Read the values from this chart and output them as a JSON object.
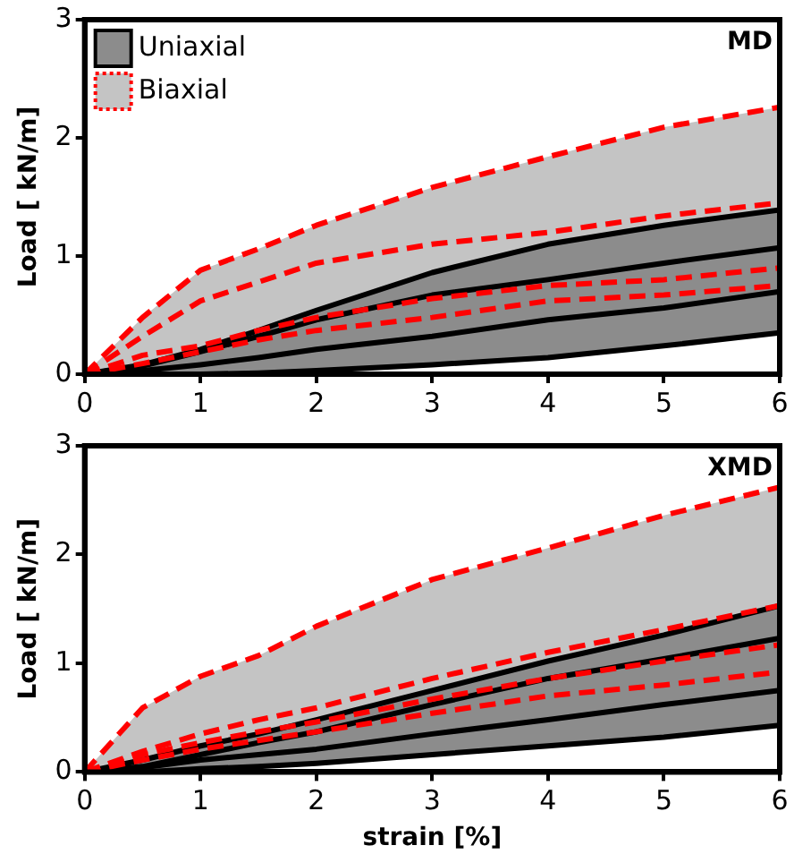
{
  "chart_data": [
    {
      "type": "line",
      "annotations": [
        "MD"
      ],
      "ylabel": "Load [ kN/m]",
      "x": [
        0,
        0.5,
        1,
        1.5,
        2,
        3,
        4,
        5,
        6
      ],
      "xlim": [
        0,
        6
      ],
      "ylim": [
        0,
        3
      ],
      "xticks": [
        0,
        1,
        2,
        3,
        4,
        5,
        6
      ],
      "yticks": [
        0,
        1,
        2,
        3
      ],
      "grid": false,
      "legend": "top left",
      "marker": "none",
      "series": [
        {
          "name": "Uniaxial",
          "color": "#000000",
          "values": [
            0,
            0.07,
            0.19,
            0.32,
            0.46,
            0.67,
            0.8,
            0.94,
            1.07
          ],
          "lower": [
            0,
            0,
            0,
            0.01,
            0.03,
            0.08,
            0.14,
            0.24,
            0.35
          ],
          "upper": [
            0,
            0.08,
            0.21,
            0.37,
            0.54,
            0.86,
            1.1,
            1.26,
            1.39
          ]
        },
        {
          "color": "#000000",
          "values": [
            0,
            0.03,
            0.08,
            0.14,
            0.21,
            0.32,
            0.46,
            0.56,
            0.7
          ]
        },
        {
          "color": "#000000",
          "values": [
            0,
            0,
            0,
            0.01,
            0.03,
            0.08,
            0.14,
            0.24,
            0.35
          ]
        },
        {
          "color": "#000000",
          "values": [
            0,
            0.08,
            0.21,
            0.37,
            0.54,
            0.86,
            1.1,
            1.26,
            1.39
          ]
        },
        {
          "name": "Biaxial",
          "color": "#ff0000",
          "line_style": "dashed",
          "values": [
            0,
            0.32,
            0.62,
            0.78,
            0.94,
            1.1,
            1.2,
            1.34,
            1.45
          ],
          "lower": [
            0,
            0.09,
            0.19,
            0.29,
            0.37,
            0.48,
            0.62,
            0.67,
            0.75
          ],
          "upper": [
            0,
            0.48,
            0.88,
            1.06,
            1.26,
            1.58,
            1.84,
            2.09,
            2.26
          ]
        },
        {
          "color": "#ff0000",
          "line_style": "dashed",
          "values": [
            0,
            0.16,
            0.24,
            0.37,
            0.48,
            0.64,
            0.75,
            0.8,
            0.9
          ]
        },
        {
          "color": "#ff0000",
          "line_style": "dashed",
          "values": [
            0,
            0.09,
            0.19,
            0.29,
            0.37,
            0.48,
            0.62,
            0.67,
            0.75
          ]
        },
        {
          "color": "#ff0000",
          "line_style": "dashed",
          "values": [
            0,
            0.48,
            0.88,
            1.06,
            1.26,
            1.58,
            1.84,
            2.09,
            2.26
          ]
        }
      ]
    },
    {
      "type": "line",
      "annotations": [
        "XMD"
      ],
      "ylabel": "Load [ kN/m]",
      "xlabel": "strain [%]",
      "x": [
        0,
        0.5,
        1,
        1.5,
        2,
        3,
        4,
        5,
        6
      ],
      "xlim": [
        0,
        6
      ],
      "ylim": [
        0,
        3
      ],
      "xticks": [
        0,
        1,
        2,
        3,
        4,
        5,
        6
      ],
      "yticks": [
        0,
        1,
        2,
        3
      ],
      "grid": false,
      "marker": "none",
      "series": [
        {
          "color": "#000000",
          "values": [
            0,
            0.05,
            0.16,
            0.27,
            0.37,
            0.62,
            0.86,
            1.04,
            1.23
          ],
          "lower": [
            0,
            0,
            0.03,
            0.05,
            0.08,
            0.16,
            0.24,
            0.32,
            0.43
          ],
          "upper": [
            0,
            0.11,
            0.24,
            0.35,
            0.48,
            0.75,
            1.02,
            1.26,
            1.53
          ]
        },
        {
          "color": "#000000",
          "values": [
            0,
            0.04,
            0.11,
            0.16,
            0.21,
            0.35,
            0.48,
            0.62,
            0.75
          ]
        },
        {
          "color": "#000000",
          "values": [
            0,
            0,
            0.03,
            0.05,
            0.08,
            0.16,
            0.24,
            0.32,
            0.43
          ]
        },
        {
          "color": "#000000",
          "values": [
            0,
            0.11,
            0.24,
            0.35,
            0.48,
            0.75,
            1.02,
            1.26,
            1.53
          ]
        },
        {
          "color": "#ff0000",
          "line_style": "dashed",
          "values": [
            0,
            0.19,
            0.35,
            0.48,
            0.59,
            0.86,
            1.1,
            1.31,
            1.53
          ],
          "lower": [
            0,
            0.11,
            0.21,
            0.29,
            0.37,
            0.54,
            0.7,
            0.8,
            0.92
          ],
          "upper": [
            0,
            0.59,
            0.88,
            1.07,
            1.34,
            1.77,
            2.06,
            2.36,
            2.62
          ]
        },
        {
          "color": "#ff0000",
          "line_style": "dashed",
          "values": [
            0,
            0.16,
            0.27,
            0.37,
            0.46,
            0.67,
            0.86,
            1.02,
            1.17
          ]
        },
        {
          "color": "#ff0000",
          "line_style": "dashed",
          "values": [
            0,
            0.11,
            0.21,
            0.29,
            0.37,
            0.54,
            0.7,
            0.8,
            0.92
          ]
        },
        {
          "color": "#ff0000",
          "line_style": "dashed",
          "values": [
            0,
            0.59,
            0.88,
            1.07,
            1.34,
            1.77,
            2.06,
            2.36,
            2.62
          ]
        }
      ]
    }
  ]
}
